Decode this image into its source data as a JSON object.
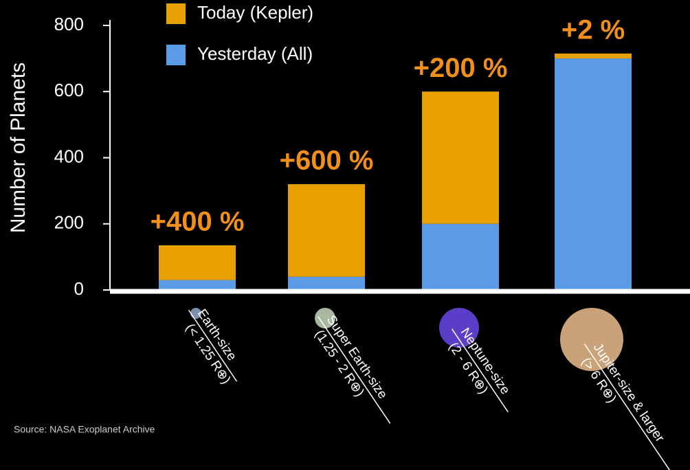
{
  "chart_data": {
    "type": "stacked_bar",
    "y_label": "Number of Planets",
    "categories": [
      "Earth-size",
      "Super Earth-size",
      "Neptune-size",
      "Jupiter-size & larger"
    ],
    "category_sizes": [
      "(< 1.25 R⊕)",
      "(1.25 - 2 R⊕)",
      "(2 - 6 R⊕)",
      "(> 6 R⊕)"
    ],
    "series": [
      {
        "name": "Yesterday (All)",
        "color": "#5b9be6",
        "values": [
          30,
          40,
          200,
          700
        ]
      },
      {
        "name": "Today (Kepler)",
        "color": "#e8a000",
        "values": [
          105,
          280,
          400,
          15
        ]
      }
    ],
    "bar_labels": [
      "+400 %",
      "+600 %",
      "+200 %",
      "+2 %"
    ],
    "ylim": [
      0,
      800
    ],
    "yticks": [
      0,
      200,
      400,
      600,
      800
    ],
    "source": "Source: NASA Exoplanet Archive"
  }
}
